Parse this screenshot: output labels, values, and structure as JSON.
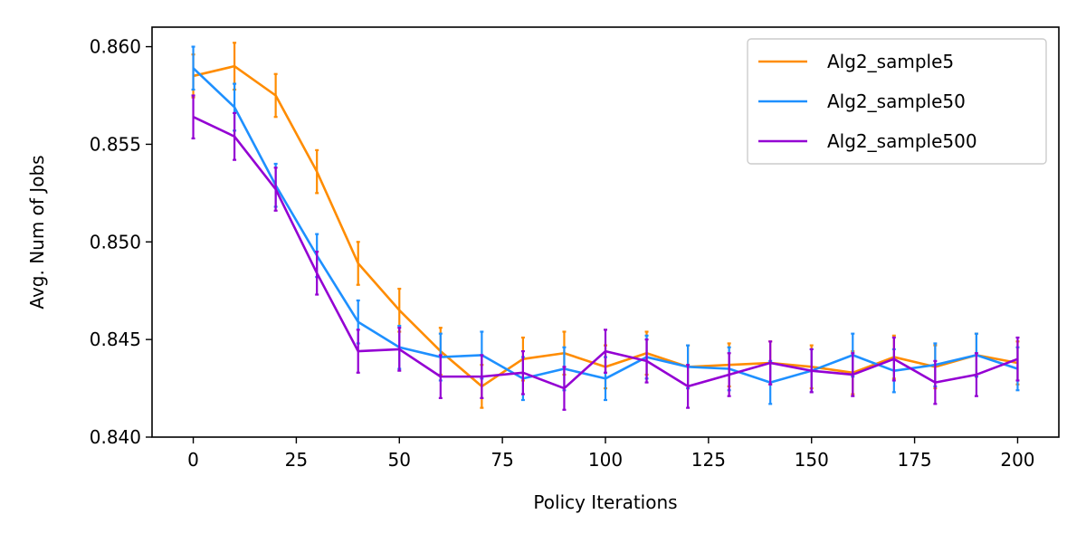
{
  "chart_data": {
    "type": "line",
    "title": "",
    "xlabel": "Policy Iterations",
    "ylabel": "Avg. Num of Jobs",
    "xlim": [
      -10,
      210
    ],
    "ylim": [
      0.84,
      0.861
    ],
    "x_ticks": [
      0,
      25,
      50,
      75,
      100,
      125,
      150,
      175,
      200
    ],
    "x_tick_labels": [
      "0",
      "25",
      "50",
      "75",
      "100",
      "125",
      "150",
      "175",
      "200"
    ],
    "y_ticks": [
      0.84,
      0.845,
      0.85,
      0.855,
      0.86
    ],
    "y_tick_labels": [
      "0.840",
      "0.845",
      "0.850",
      "0.855",
      "0.860"
    ],
    "grid": false,
    "legend_position": "top-right",
    "x": [
      0,
      10,
      20,
      30,
      40,
      50,
      60,
      70,
      80,
      90,
      100,
      110,
      120,
      130,
      140,
      150,
      160,
      170,
      180,
      190,
      200
    ],
    "series": [
      {
        "name": "Alg2_sample5",
        "color": "#ff8c00",
        "values": [
          0.8585,
          0.859,
          0.8575,
          0.8536,
          0.8489,
          0.8465,
          0.8444,
          0.8426,
          0.844,
          0.8443,
          0.8436,
          0.8443,
          0.8436,
          0.8437,
          0.8438,
          0.8436,
          0.8433,
          0.8441,
          0.8436,
          0.8442,
          0.8438
        ],
        "errors": [
          0.0011,
          0.0012,
          0.0011,
          0.0011,
          0.0011,
          0.0011,
          0.0012,
          0.0011,
          0.0011,
          0.0011,
          0.0011,
          0.0011,
          0.0011,
          0.0011,
          0.0011,
          0.0011,
          0.0011,
          0.0011,
          0.0011,
          0.0011,
          0.0011
        ]
      },
      {
        "name": "Alg2_sample50",
        "color": "#1e90ff",
        "values": [
          0.8589,
          0.8569,
          0.8529,
          0.8493,
          0.8459,
          0.8446,
          0.8441,
          0.8442,
          0.843,
          0.8435,
          0.843,
          0.8441,
          0.8436,
          0.8435,
          0.8428,
          0.8434,
          0.8442,
          0.8434,
          0.8437,
          0.8442,
          0.8435
        ],
        "errors": [
          0.0011,
          0.0012,
          0.0011,
          0.0011,
          0.0011,
          0.0011,
          0.0012,
          0.0012,
          0.0011,
          0.0011,
          0.0011,
          0.0011,
          0.0011,
          0.0011,
          0.0011,
          0.0011,
          0.0011,
          0.0011,
          0.0011,
          0.0011,
          0.0011
        ]
      },
      {
        "name": "Alg2_sample500",
        "color": "#9400d3",
        "values": [
          0.8564,
          0.8554,
          0.8527,
          0.8484,
          0.8444,
          0.8445,
          0.8431,
          0.8431,
          0.8433,
          0.8425,
          0.8444,
          0.8439,
          0.8426,
          0.8432,
          0.8438,
          0.8434,
          0.8432,
          0.844,
          0.8428,
          0.8432,
          0.844
        ],
        "errors": [
          0.0011,
          0.0012,
          0.0011,
          0.0011,
          0.0011,
          0.0011,
          0.0011,
          0.0011,
          0.0011,
          0.0011,
          0.0011,
          0.0011,
          0.0011,
          0.0011,
          0.0011,
          0.0011,
          0.0011,
          0.0011,
          0.0011,
          0.0011,
          0.0011
        ]
      }
    ]
  }
}
